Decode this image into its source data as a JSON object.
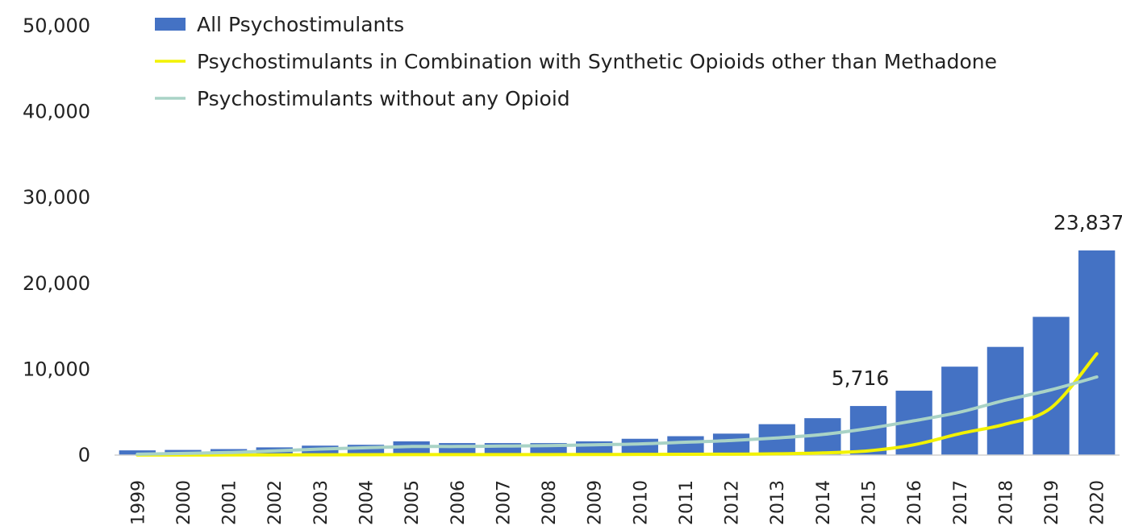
{
  "chart_data": {
    "type": "bar",
    "categories": [
      "1999",
      "2000",
      "2001",
      "2002",
      "2003",
      "2004",
      "2005",
      "2006",
      "2007",
      "2008",
      "2009",
      "2010",
      "2011",
      "2012",
      "2013",
      "2014",
      "2015",
      "2016",
      "2017",
      "2018",
      "2019",
      "2020"
    ],
    "ylim": [
      0,
      50000
    ],
    "yticks": [
      0,
      10000,
      20000,
      30000,
      40000,
      50000
    ],
    "ytick_labels": [
      "0",
      "10,000",
      "20,000",
      "30,000",
      "40,000",
      "50,000"
    ],
    "grid": false,
    "legend_position": "top-left",
    "series": [
      {
        "name": "All Psychostimulants",
        "type": "bar",
        "color": "#4472C4",
        "values": [
          550,
          600,
          700,
          900,
          1100,
          1200,
          1600,
          1400,
          1400,
          1400,
          1600,
          1900,
          2200,
          2500,
          3600,
          4300,
          5716,
          7500,
          10300,
          12600,
          16100,
          23837
        ]
      },
      {
        "name": "Psychostimulants in Combination with Synthetic Opioids other than Methadone",
        "type": "line",
        "color": "#F2F200",
        "values": [
          10,
          10,
          20,
          30,
          40,
          50,
          60,
          60,
          60,
          60,
          70,
          80,
          90,
          100,
          150,
          250,
          500,
          1200,
          2500,
          3600,
          5500,
          11800
        ]
      },
      {
        "name": "Psychostimulants without any Opioid",
        "type": "line",
        "color": "#A9D3C6",
        "values": [
          100,
          200,
          300,
          500,
          700,
          850,
          1000,
          1000,
          1050,
          1100,
          1200,
          1300,
          1500,
          1700,
          2000,
          2400,
          3100,
          4000,
          5000,
          6400,
          7600,
          9100
        ]
      }
    ],
    "annotations": [
      {
        "category": "2015",
        "text": "5,716"
      },
      {
        "category": "2020",
        "text": "23,837"
      }
    ]
  }
}
